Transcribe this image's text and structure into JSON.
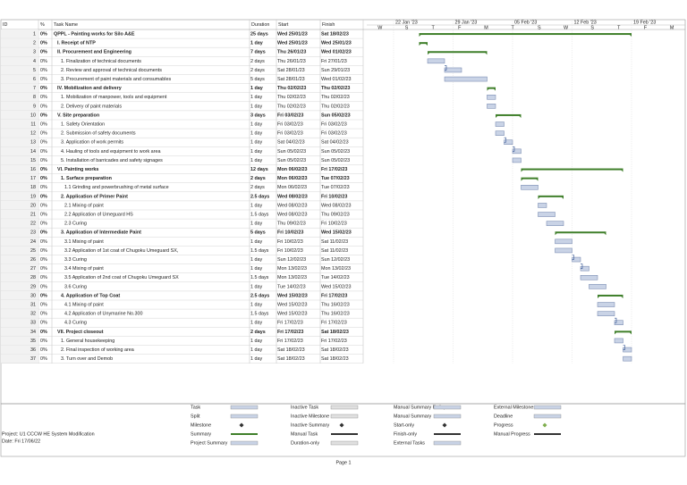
{
  "header": {
    "columns": [
      "ID",
      "%",
      "Task Name",
      "Duration",
      "Start",
      "Finish"
    ]
  },
  "timescale": {
    "weeks": [
      "22 Jan '23",
      "29 Jan '23",
      "05 Feb '23",
      "12 Feb '23",
      "19 Feb '23"
    ],
    "days": [
      "W",
      "S",
      "T",
      "F",
      "M",
      "T",
      "S",
      "W",
      "S",
      "T",
      "F",
      "M"
    ]
  },
  "tasks": [
    {
      "id": 1,
      "pct": "0%",
      "name": "QPPL - Painting works for Silo A&E",
      "duration": "25 days",
      "start": "Wed 25/01/23",
      "finish": "Sat 18/02/23",
      "bold": true,
      "level": 0
    },
    {
      "id": 2,
      "pct": "0%",
      "name": "I. Receipt of NTP",
      "duration": "1 day",
      "start": "Wed 25/01/23",
      "finish": "Wed 25/01/23",
      "bold": true,
      "level": 1
    },
    {
      "id": 3,
      "pct": "0%",
      "name": "II. Procurement and Engineering",
      "duration": "7 days",
      "start": "Thu 26/01/23",
      "finish": "Wed 01/02/23",
      "bold": true,
      "level": 1
    },
    {
      "id": 4,
      "pct": "0%",
      "name": "1. Finalization of technical documents",
      "duration": "2 days",
      "start": "Thu 26/01/23",
      "finish": "Fri 27/01/23",
      "bold": false,
      "level": 2
    },
    {
      "id": 5,
      "pct": "0%",
      "name": "2. Review and approval of technical documents",
      "duration": "2 days",
      "start": "Sat 28/01/23",
      "finish": "Sun 29/01/23",
      "bold": false,
      "level": 2
    },
    {
      "id": 6,
      "pct": "0%",
      "name": "3. Procurement of paint materials and consumables",
      "duration": "5 days",
      "start": "Sat 28/01/23",
      "finish": "Wed 01/02/23",
      "bold": false,
      "level": 2
    },
    {
      "id": 7,
      "pct": "0%",
      "name": "IV. Mobilization and delivery",
      "duration": "1 day",
      "start": "Thu 02/02/23",
      "finish": "Thu 02/02/23",
      "bold": true,
      "level": 1
    },
    {
      "id": 8,
      "pct": "0%",
      "name": "1. Mobilization of manpower, tools and equipment",
      "duration": "1 day",
      "start": "Thu 02/02/23",
      "finish": "Thu 02/02/23",
      "bold": false,
      "level": 2
    },
    {
      "id": 9,
      "pct": "0%",
      "name": "2. Delivery of paint materials",
      "duration": "1 day",
      "start": "Thu 02/02/23",
      "finish": "Thu 02/02/23",
      "bold": false,
      "level": 2
    },
    {
      "id": 10,
      "pct": "0%",
      "name": "V. Site preparation",
      "duration": "3 days",
      "start": "Fri 03/02/23",
      "finish": "Sun 05/02/23",
      "bold": true,
      "level": 1
    },
    {
      "id": 11,
      "pct": "0%",
      "name": "1. Safety Orientation",
      "duration": "1 day",
      "start": "Fri 03/02/23",
      "finish": "Fri 03/02/23",
      "bold": false,
      "level": 2
    },
    {
      "id": 12,
      "pct": "0%",
      "name": "2. Submission of safety documents",
      "duration": "1 day",
      "start": "Fri 03/02/23",
      "finish": "Fri 03/02/23",
      "bold": false,
      "level": 2
    },
    {
      "id": 13,
      "pct": "0%",
      "name": "3. Application of work permits",
      "duration": "1 day",
      "start": "Sat 04/02/23",
      "finish": "Sat 04/02/23",
      "bold": false,
      "level": 2
    },
    {
      "id": 14,
      "pct": "0%",
      "name": "4. Hauling of tools and equipment to work area",
      "duration": "1 day",
      "start": "Sun 05/02/23",
      "finish": "Sun 05/02/23",
      "bold": false,
      "level": 2
    },
    {
      "id": 15,
      "pct": "0%",
      "name": "5. Installation of barricades and safety signages",
      "duration": "1 day",
      "start": "Sun 05/02/23",
      "finish": "Sun 05/02/23",
      "bold": false,
      "level": 2
    },
    {
      "id": 16,
      "pct": "0%",
      "name": "VI. Painting works",
      "duration": "12 days",
      "start": "Mon 06/02/23",
      "finish": "Fri 17/02/23",
      "bold": true,
      "level": 1
    },
    {
      "id": 17,
      "pct": "0%",
      "name": "1. Surface preparation",
      "duration": "2 days",
      "start": "Mon 06/02/23",
      "finish": "Tue 07/02/23",
      "bold": true,
      "level": 2
    },
    {
      "id": 18,
      "pct": "0%",
      "name": "1.1 Grinding and powerbrushing of metal surface",
      "duration": "2 days",
      "start": "Mon 06/02/23",
      "finish": "Tue 07/02/23",
      "bold": false,
      "level": 3
    },
    {
      "id": 19,
      "pct": "0%",
      "name": "2. Application of Primer Paint",
      "duration": "2.5 days",
      "start": "Wed 08/02/23",
      "finish": "Fri 10/02/23",
      "bold": true,
      "level": 2
    },
    {
      "id": 20,
      "pct": "0%",
      "name": "2.1 Mixing of paint",
      "duration": "1 day",
      "start": "Wed 08/02/23",
      "finish": "Wed 08/02/23",
      "bold": false,
      "level": 3
    },
    {
      "id": 21,
      "pct": "0%",
      "name": "2.2 Application of Umeguard HS",
      "duration": "1.5 days",
      "start": "Wed 08/02/23",
      "finish": "Thu 09/02/23",
      "bold": false,
      "level": 3
    },
    {
      "id": 22,
      "pct": "0%",
      "name": "2.3 Curing",
      "duration": "1 day",
      "start": "Thu 09/02/23",
      "finish": "Fri 10/02/23",
      "bold": false,
      "level": 3
    },
    {
      "id": 23,
      "pct": "0%",
      "name": "3. Application of Intermediate Paint",
      "duration": "5 days",
      "start": "Fri 10/02/23",
      "finish": "Wed 15/02/23",
      "bold": true,
      "level": 2
    },
    {
      "id": 24,
      "pct": "0%",
      "name": "3.1 Mixing of paint",
      "duration": "1 day",
      "start": "Fri 10/02/23",
      "finish": "Sat 11/02/23",
      "bold": false,
      "level": 3
    },
    {
      "id": 25,
      "pct": "0%",
      "name": "3.2 Application of 1st coat of Chugoku Umeguard SX,",
      "duration": "1.5 days",
      "start": "Fri 10/02/23",
      "finish": "Sat 11/02/23",
      "bold": false,
      "level": 3
    },
    {
      "id": 26,
      "pct": "0%",
      "name": "3.3 Curing",
      "duration": "1 day",
      "start": "Sun 12/02/23",
      "finish": "Sun 12/02/23",
      "bold": false,
      "level": 3
    },
    {
      "id": 27,
      "pct": "0%",
      "name": "3.4 Mixing of paint",
      "duration": "1 day",
      "start": "Mon 13/02/23",
      "finish": "Mon 13/02/23",
      "bold": false,
      "level": 3
    },
    {
      "id": 28,
      "pct": "0%",
      "name": "3.5 Application of 2nd coat of Chugoku Umeguard SX",
      "duration": "1.5 days",
      "start": "Mon 13/02/23",
      "finish": "Tue 14/02/23",
      "bold": false,
      "level": 3
    },
    {
      "id": 29,
      "pct": "0%",
      "name": "3.6 Curing",
      "duration": "1 day",
      "start": "Tue 14/02/23",
      "finish": "Wed 15/02/23",
      "bold": false,
      "level": 3
    },
    {
      "id": 30,
      "pct": "0%",
      "name": "4. Application of Top Coat",
      "duration": "2.5 days",
      "start": "Wed 15/02/23",
      "finish": "Fri 17/02/23",
      "bold": true,
      "level": 2
    },
    {
      "id": 31,
      "pct": "0%",
      "name": "4.1 Mixing of paint",
      "duration": "1 day",
      "start": "Wed 15/02/23",
      "finish": "Thu 16/02/23",
      "bold": false,
      "level": 3
    },
    {
      "id": 32,
      "pct": "0%",
      "name": "4.2 Application of Unymarine No.300",
      "duration": "1.5 days",
      "start": "Wed 15/02/23",
      "finish": "Thu 16/02/23",
      "bold": false,
      "level": 3
    },
    {
      "id": 33,
      "pct": "0%",
      "name": "4.3 Curing",
      "duration": "1 day",
      "start": "Fri 17/02/23",
      "finish": "Fri 17/02/23",
      "bold": false,
      "level": 3
    },
    {
      "id": 34,
      "pct": "0%",
      "name": "VII. Project closeout",
      "duration": "2 days",
      "start": "Fri 17/02/23",
      "finish": "Sat 18/02/23",
      "bold": true,
      "level": 1
    },
    {
      "id": 35,
      "pct": "0%",
      "name": "1. General housekeeping",
      "duration": "1 day",
      "start": "Fri 17/02/23",
      "finish": "Fri 17/02/23",
      "bold": false,
      "level": 2
    },
    {
      "id": 36,
      "pct": "0%",
      "name": "2. Final inspection of working area",
      "duration": "1 day",
      "start": "Sat 18/02/23",
      "finish": "Sat 18/02/23",
      "bold": false,
      "level": 2
    },
    {
      "id": 37,
      "pct": "0%",
      "name": "3. Turn over and Demob",
      "duration": "1 day",
      "start": "Sat 18/02/23",
      "finish": "Sat 18/02/23",
      "bold": false,
      "level": 2
    }
  ],
  "legend": {
    "project": "Project: U1 CCCW HE System Modification",
    "date": "Date: Fri 17/06/22",
    "items": [
      "Task",
      "Split",
      "Milestone",
      "Summary",
      "Project Summary",
      "Inactive Task",
      "Inactive Milestone",
      "Inactive Summary",
      "Manual Task",
      "Duration-only",
      "Manual Summary Rollup",
      "Manual Summary",
      "Start-only",
      "Finish-only",
      "External Tasks",
      "External Milestone",
      "Deadline",
      "Progress",
      "Manual Progress"
    ]
  },
  "footer": {
    "page": "Page 1"
  }
}
